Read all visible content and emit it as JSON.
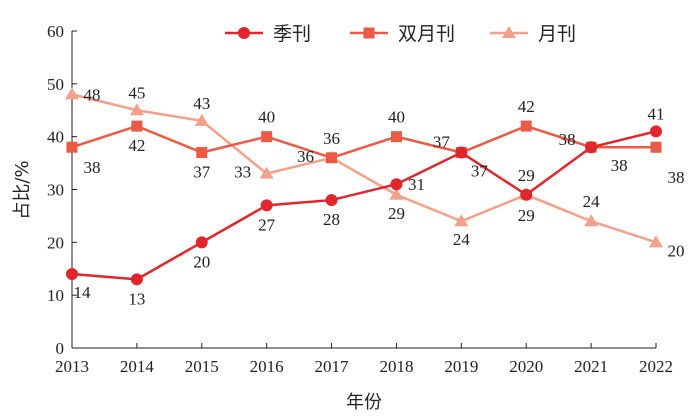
{
  "chart_data": {
    "type": "line",
    "title": "",
    "xlabel": "年份",
    "ylabel": "占比/%",
    "x": [
      "2013",
      "2014",
      "2015",
      "2016",
      "2017",
      "2018",
      "2019",
      "2020",
      "2021",
      "2022"
    ],
    "yticks": [
      "0",
      "10",
      "20",
      "30",
      "40",
      "50",
      "60"
    ],
    "ylim": [
      0,
      60
    ],
    "legend_position": "top",
    "series": [
      {
        "name": "季刊",
        "marker": "circle",
        "color": "#e0262a",
        "values": [
          14,
          13,
          20,
          27,
          28,
          31,
          37,
          29,
          38,
          41
        ]
      },
      {
        "name": "双月刊",
        "marker": "square",
        "color": "#ea5a44",
        "values": [
          38,
          42,
          37,
          40,
          36,
          40,
          37,
          42,
          38,
          38
        ]
      },
      {
        "name": "月刊",
        "marker": "triangle",
        "color": "#f4a08a",
        "values": [
          48,
          45,
          43,
          33,
          36,
          29,
          24,
          29,
          24,
          20
        ]
      }
    ]
  }
}
